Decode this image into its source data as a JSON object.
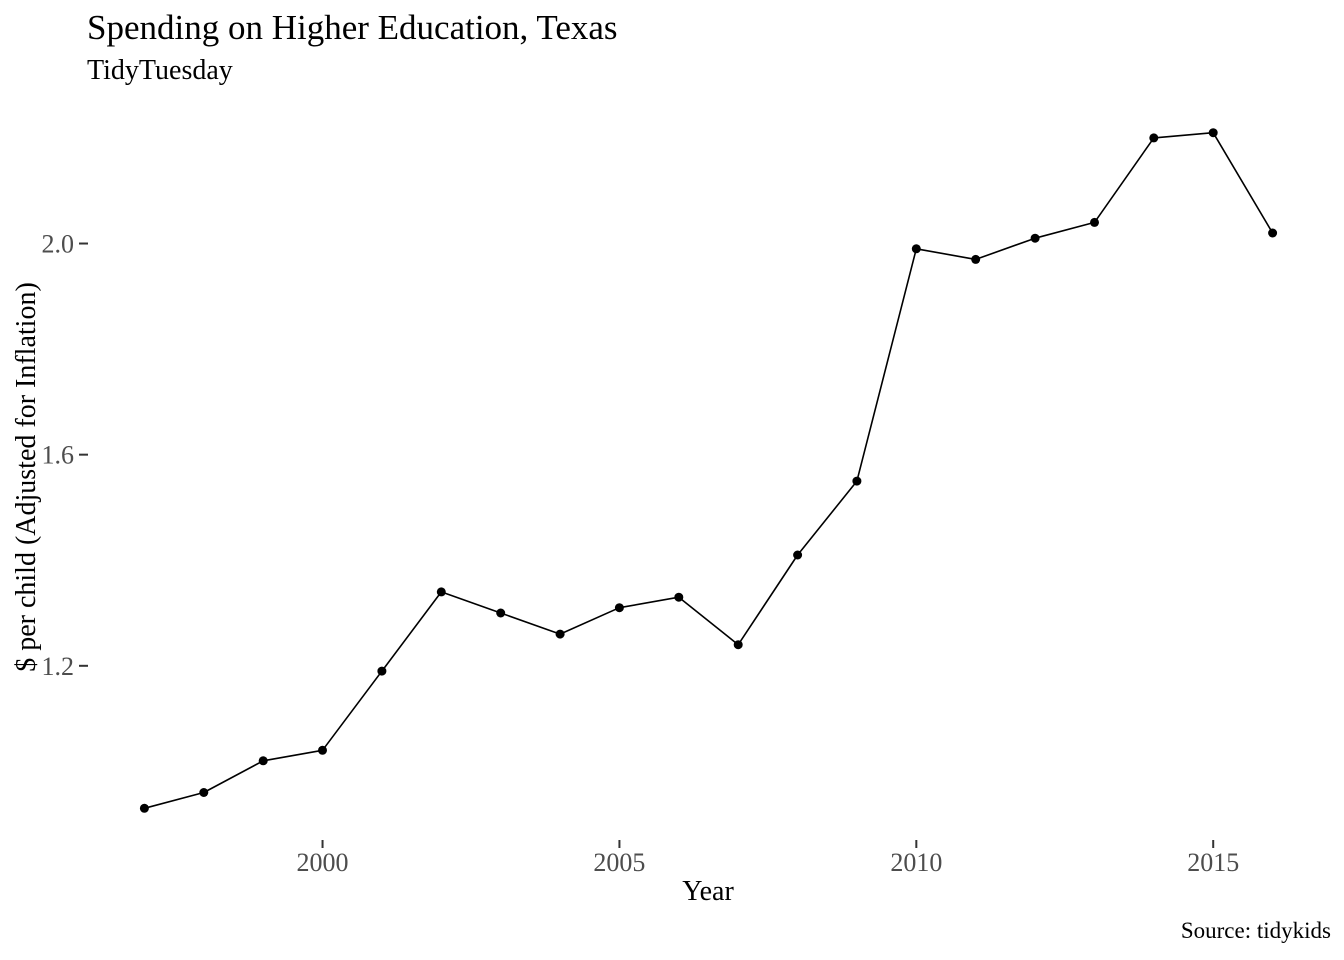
{
  "chart_data": {
    "type": "line",
    "title": "Spending on Higher Education, Texas",
    "subtitle": "TidyTuesday",
    "xlabel": "Year",
    "ylabel": "$ per child (Adjusted for Inflation)",
    "caption": "Source: tidykids",
    "x": [
      1997,
      1998,
      1999,
      2000,
      2001,
      2002,
      2003,
      2004,
      2005,
      2006,
      2007,
      2008,
      2009,
      2010,
      2011,
      2012,
      2013,
      2014,
      2015,
      2016
    ],
    "values": [
      0.93,
      0.96,
      1.02,
      1.04,
      1.19,
      1.34,
      1.3,
      1.26,
      1.31,
      1.33,
      1.24,
      1.41,
      1.55,
      1.99,
      1.97,
      2.01,
      2.04,
      2.2,
      2.21,
      2.02
    ],
    "x_ticks": {
      "values": [
        2000,
        2005,
        2010,
        2015
      ],
      "labels": [
        "2000",
        "2005",
        "2010",
        "2015"
      ]
    },
    "y_ticks": {
      "values": [
        1.2,
        1.6,
        2.0
      ],
      "labels": [
        "1.2",
        "1.6",
        "2.0"
      ]
    },
    "xlim": [
      1996.05,
      2016.95
    ],
    "ylim": [
      0.87,
      2.27
    ],
    "grid": "off",
    "legend": "none",
    "axis_lines": "none",
    "marker": "point",
    "colors": {
      "line": "#000000",
      "point": "#000000",
      "tick": "#333333",
      "tick_label": "#4d4d4d",
      "text": "#000000",
      "background": "#ffffff"
    }
  }
}
